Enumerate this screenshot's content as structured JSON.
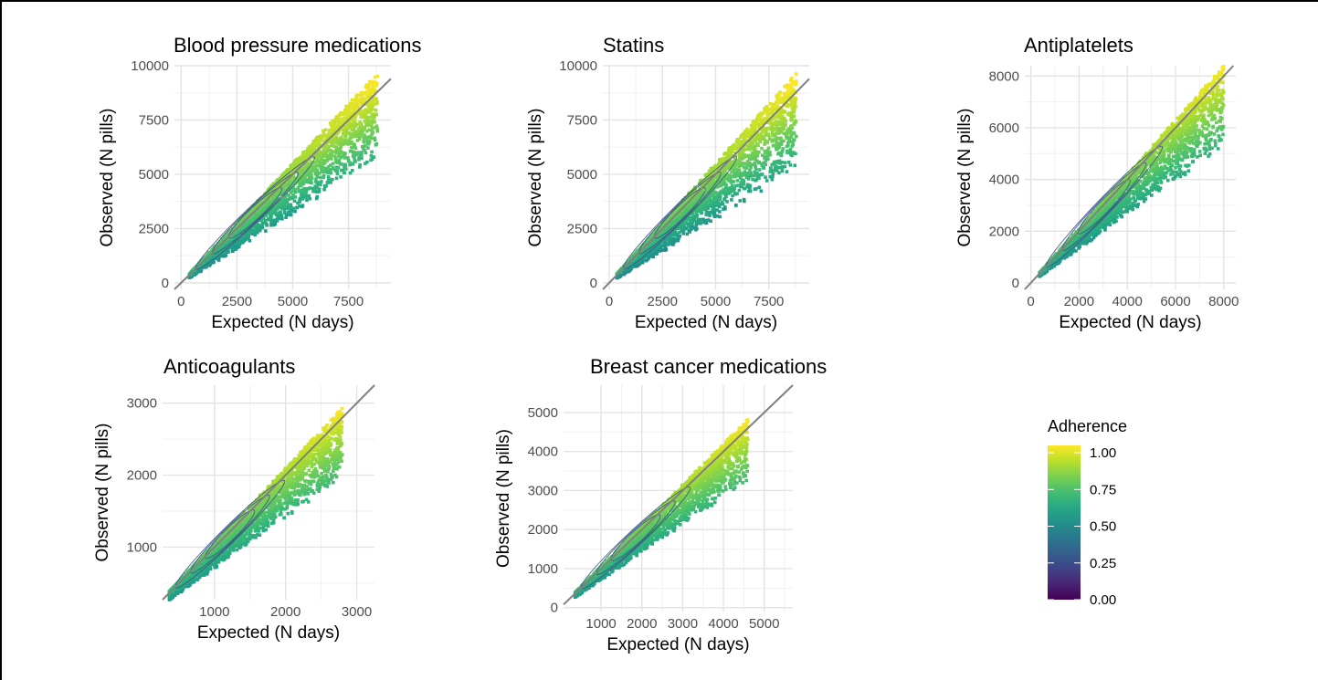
{
  "colorbar": {
    "title": "Adherence",
    "ticks": [
      "1.00",
      "0.75",
      "0.50",
      "0.25",
      "0.00"
    ],
    "range": [
      0,
      1.05
    ],
    "palette": [
      "#440154",
      "#3b528b",
      "#21918c",
      "#5ec962",
      "#fde725"
    ]
  },
  "chart_data": [
    {
      "type": "scatter",
      "title": "Blood pressure medications",
      "xlabel": "Expected (N days)",
      "ylabel": "Observed (N pills)",
      "xlim": [
        -300,
        9400
      ],
      "ylim": [
        -300,
        10000
      ],
      "xticks": [
        "0",
        "2500",
        "5000",
        "7500"
      ],
      "xtick_values": [
        0,
        2500,
        5000,
        7500
      ],
      "yticks": [
        "0",
        "2500",
        "5000",
        "7500",
        "10000"
      ],
      "ytick_values": [
        0,
        2500,
        5000,
        7500,
        10000
      ],
      "reference_line": "y = x",
      "density_range": [
        [
          365,
          8800
        ],
        [
          0.6,
          1.1
        ]
      ]
    },
    {
      "type": "scatter",
      "title": "Statins",
      "xlabel": "Expected (N days)",
      "ylabel": "Observed (N pills)",
      "xlim": [
        -300,
        9400
      ],
      "ylim": [
        -300,
        10000
      ],
      "xticks": [
        "0",
        "2500",
        "5000",
        "7500"
      ],
      "xtick_values": [
        0,
        2500,
        5000,
        7500
      ],
      "yticks": [
        "0",
        "2500",
        "5000",
        "7500",
        "10000"
      ],
      "ytick_values": [
        0,
        2500,
        5000,
        7500,
        10000
      ],
      "reference_line": "y = x",
      "density_range": [
        [
          365,
          8800
        ],
        [
          0.55,
          1.1
        ]
      ]
    },
    {
      "type": "scatter",
      "title": "Antiplatelets",
      "xlabel": "Expected (N days)",
      "ylabel": "Observed (N pills)",
      "xlim": [
        -250,
        8500
      ],
      "ylim": [
        -250,
        8400
      ],
      "xticks": [
        "0",
        "2000",
        "4000",
        "6000",
        "8000"
      ],
      "xtick_values": [
        0,
        2000,
        4000,
        6000,
        8000
      ],
      "yticks": [
        "0",
        "2000",
        "4000",
        "6000",
        "8000"
      ],
      "ytick_values": [
        0,
        2000,
        4000,
        6000,
        8000
      ],
      "reference_line": "y = x",
      "density_range": [
        [
          365,
          8000
        ],
        [
          0.65,
          1.05
        ]
      ]
    },
    {
      "type": "scatter",
      "title": "Anticoagulants",
      "xlabel": "Expected (N days)",
      "ylabel": "Observed (N pills)",
      "xlim": [
        270,
        3250
      ],
      "ylim": [
        270,
        3250
      ],
      "xticks": [
        "1000",
        "2000",
        "3000"
      ],
      "xtick_values": [
        1000,
        2000,
        3000
      ],
      "yticks": [
        "1000",
        "2000",
        "3000"
      ],
      "ytick_values": [
        1000,
        2000,
        3000
      ],
      "reference_line": "y = x",
      "density_range": [
        [
          365,
          2800
        ],
        [
          0.7,
          1.05
        ]
      ]
    },
    {
      "type": "scatter",
      "title": "Breast cancer medications",
      "xlabel": "Expected (N days)",
      "ylabel": "Observed (N pills)",
      "xlim": [
        80,
        5700
      ],
      "ylim": [
        -100,
        5700
      ],
      "xticks": [
        "1000",
        "2000",
        "3000",
        "4000",
        "5000"
      ],
      "xtick_values": [
        1000,
        2000,
        3000,
        4000,
        5000
      ],
      "yticks": [
        "0",
        "1000",
        "2000",
        "3000",
        "4000",
        "5000"
      ],
      "ytick_values": [
        0,
        1000,
        2000,
        3000,
        4000,
        5000
      ],
      "reference_line": "y = x",
      "density_range": [
        [
          365,
          4600
        ],
        [
          0.7,
          1.05
        ]
      ]
    }
  ]
}
